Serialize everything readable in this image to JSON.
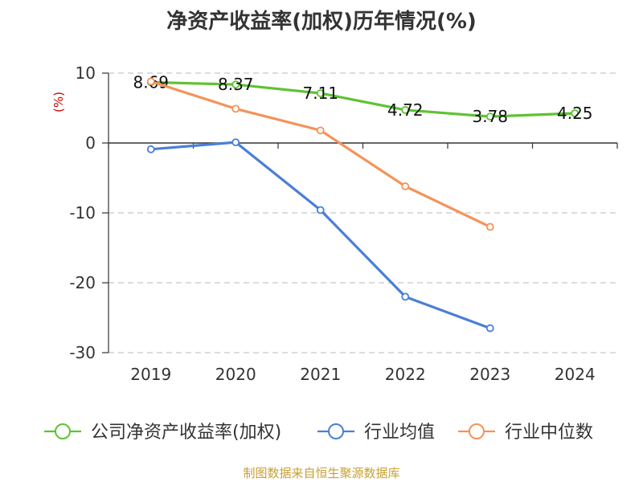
{
  "chart_data": {
    "type": "line",
    "title": "净资产收益率(加权)历年情况(%)",
    "ylabel": "(%)",
    "xlabel": "",
    "categories": [
      "2019",
      "2020",
      "2021",
      "2022",
      "2023",
      "2024"
    ],
    "ylim": [
      -30,
      10
    ],
    "yticks": [
      10,
      0,
      -10,
      -20,
      -30
    ],
    "grid": true,
    "legend_position": "bottom",
    "series": [
      {
        "name": "公司净资产收益率(加权)",
        "color": "#5ec332",
        "values": [
          8.69,
          8.37,
          7.11,
          4.72,
          3.78,
          4.25
        ],
        "labels": [
          "8.69",
          "8.37",
          "7.11",
          "4.72",
          "3.78",
          "4.25"
        ],
        "show_labels": true
      },
      {
        "name": "行业均值",
        "color": "#4a7fd6",
        "values": [
          -0.9,
          0.1,
          -9.6,
          -22.0,
          -26.5,
          null
        ],
        "show_labels": false
      },
      {
        "name": "行业中位数",
        "color": "#f4935a",
        "values": [
          8.8,
          4.9,
          1.8,
          -6.2,
          -12.0,
          null
        ],
        "show_labels": false
      }
    ]
  },
  "source": "制图数据来自恒生聚源数据库"
}
